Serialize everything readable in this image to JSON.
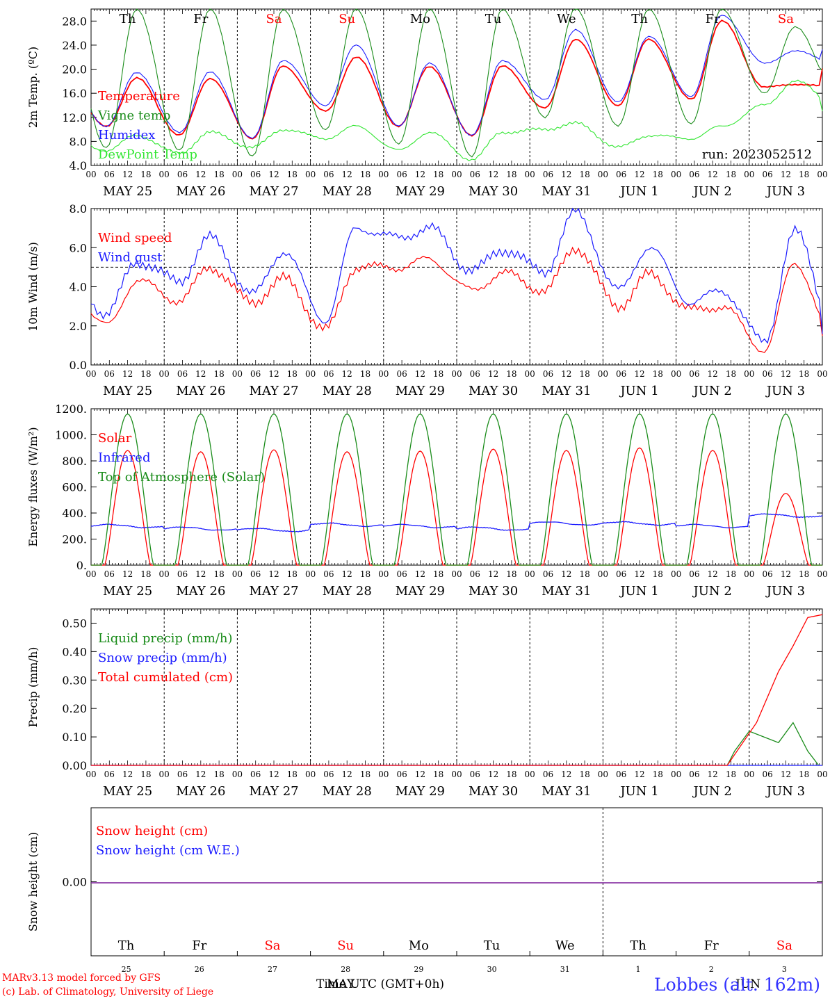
{
  "colors": {
    "red": "#ff0000",
    "blue": "#1a1aff",
    "green": "#1a8c1a",
    "lightgreen": "#33e633",
    "purple": "#7a1a99",
    "weekend": "#ff0000",
    "weekday": "#000000"
  },
  "footer": {
    "credit1": "MARv3.13 model forced by GFS",
    "credit2": "(c) Lab. of Climatology, University of Liege",
    "xlabel": "Time UTC (GMT+0h)",
    "month_overlay_1": "MAY",
    "month_overlay_2": "JUN",
    "station": "Lobbes (alt.  162m)"
  },
  "chart_data": [
    {
      "type": "line",
      "panel": "temperature",
      "ylabel": "2m Temp. (ºC)",
      "ylim": [
        4.0,
        30.0
      ],
      "yticks": [
        "4.0",
        "8.0",
        "12.0",
        "16.0",
        "20.0",
        "24.0",
        "28.0"
      ],
      "hours": [
        "00",
        "06",
        "12",
        "18"
      ],
      "dates": [
        "MAY 25",
        "MAY 26",
        "MAY 27",
        "MAY 28",
        "MAY 29",
        "MAY 30",
        "MAY 31",
        "JUN  1",
        "JUN  2",
        "JUN  3"
      ],
      "weekdays": [
        "Th",
        "Fr",
        "Sa",
        "Su",
        "Mo",
        "Tu",
        "We",
        "Th",
        "Fr",
        "Sa"
      ],
      "weekend": [
        false,
        false,
        true,
        true,
        false,
        false,
        false,
        false,
        false,
        true
      ],
      "annotation": "run: 2023052512",
      "legend": [
        "Temperature",
        "Vigne temp",
        "Humidex",
        "DewPoint Temp"
      ],
      "series": [
        {
          "name": "Temperature",
          "color": "red",
          "min": [
            10.5,
            9.0,
            8.5,
            13.0,
            10.5,
            9.0,
            13.5,
            14.0,
            15.0,
            17.0
          ],
          "max": [
            18.5,
            18.5,
            20.5,
            22.0,
            20.5,
            20.5,
            25.0,
            25.0,
            28.0,
            17.5
          ]
        },
        {
          "name": "Humidex",
          "color": "blue",
          "min": [
            10.5,
            9.5,
            8.5,
            14.0,
            10.5,
            9.0,
            15.0,
            14.5,
            15.5,
            21.0
          ],
          "max": [
            19.5,
            19.5,
            21.5,
            24.0,
            21.0,
            21.5,
            26.5,
            25.5,
            29.0,
            23.0
          ]
        },
        {
          "name": "Vigne temp",
          "color": "green",
          "min": [
            7.0,
            6.5,
            5.5,
            10.0,
            7.5,
            5.5,
            12.0,
            10.5,
            11.0,
            16.0
          ],
          "max": [
            30.0,
            30.0,
            30.0,
            30.0,
            30.0,
            30.0,
            30.0,
            30.0,
            30.0,
            27.0
          ]
        },
        {
          "name": "DewPoint Temp",
          "color": "lightgreen",
          "min": [
            6.5,
            6.0,
            7.0,
            8.5,
            6.5,
            5.0,
            10.0,
            7.0,
            8.5,
            14.0
          ],
          "max": [
            9.0,
            9.5,
            10.0,
            10.5,
            9.5,
            9.5,
            11.0,
            9.0,
            10.5,
            18.0
          ]
        }
      ]
    },
    {
      "type": "line",
      "panel": "wind",
      "ylabel": "10m Wind (m/s)",
      "ylim": [
        0.0,
        8.0
      ],
      "yticks": [
        "0.0",
        "2.0",
        "4.0",
        "6.0",
        "8.0"
      ],
      "reference_line": 5.0,
      "legend": [
        "Wind speed",
        "Wind gust"
      ],
      "series": [
        {
          "name": "Wind speed",
          "color": "red",
          "min": [
            2.0,
            3.3,
            3.2,
            1.8,
            5.0,
            3.8,
            3.8,
            3.0,
            2.8,
            0.8
          ],
          "max": [
            4.3,
            5.0,
            4.4,
            5.0,
            5.4,
            4.7,
            6.0,
            4.6,
            3.0,
            5.2
          ]
        },
        {
          "name": "Wind gust",
          "color": "blue",
          "min": [
            2.6,
            4.3,
            3.6,
            2.3,
            6.5,
            4.8,
            4.8,
            3.8,
            3.2,
            1.2
          ],
          "max": [
            5.3,
            6.5,
            5.8,
            7.0,
            7.0,
            5.9,
            7.8,
            6.0,
            3.8,
            6.8
          ]
        }
      ]
    },
    {
      "type": "line",
      "panel": "energy",
      "ylabel": "Energy fluxes (W/m²)",
      "ylim": [
        0,
        1200
      ],
      "yticks": [
        "0.",
        "200.",
        "400.",
        "600.",
        "800.",
        "1000.",
        "1200."
      ],
      "legend": [
        "Solar",
        "Infrared",
        "Top of Atmosphere (Solar)"
      ],
      "series": [
        {
          "name": "Solar",
          "color": "red",
          "daily_peak": [
            880,
            870,
            885,
            870,
            875,
            890,
            880,
            900,
            880,
            550
          ]
        },
        {
          "name": "Infrared",
          "color": "blue",
          "daily_mean": [
            300,
            280,
            270,
            310,
            300,
            280,
            320,
            320,
            300,
            380
          ]
        },
        {
          "name": "Top of Atmosphere (Solar)",
          "color": "green",
          "daily_peak": [
            1160,
            1160,
            1160,
            1160,
            1160,
            1160,
            1160,
            1160,
            1160,
            1160
          ]
        }
      ]
    },
    {
      "type": "line",
      "panel": "precip",
      "ylabel": "Precip (mm/h)",
      "ylim": [
        0.0,
        0.55
      ],
      "yticks": [
        "0.00",
        "0.10",
        "0.20",
        "0.30",
        "0.40",
        "0.50"
      ],
      "legend": [
        "Liquid precip (mm/h)",
        "Snow precip (mm/h)",
        "Total cumulated (cm)"
      ],
      "series": [
        {
          "name": "Liquid precip (mm/h)",
          "color": "green",
          "x": [
            8.7,
            8.8,
            9.0,
            9.2,
            9.4,
            9.6,
            9.8,
            9.95
          ],
          "y": [
            0.0,
            0.05,
            0.12,
            0.1,
            0.08,
            0.15,
            0.05,
            0.0
          ]
        },
        {
          "name": "Snow precip (mm/h)",
          "color": "blue",
          "x": [
            0,
            10
          ],
          "y": [
            0,
            0
          ]
        },
        {
          "name": "Total cumulated (cm)",
          "color": "red",
          "x": [
            0,
            8.7,
            9.1,
            9.4,
            9.6,
            9.8,
            10.0
          ],
          "y": [
            0.0,
            0.0,
            0.15,
            0.33,
            0.42,
            0.52,
            0.53
          ]
        }
      ]
    },
    {
      "type": "line",
      "panel": "snow",
      "ylabel": "Snow height (cm)",
      "yticks": [
        "0.00"
      ],
      "legend": [
        "Snow height (cm)",
        "Snow height (cm W.E.)"
      ],
      "day_numbers": [
        "25",
        "26",
        "27",
        "28",
        "29",
        "30",
        "31",
        "1",
        "2",
        "3"
      ],
      "series": [
        {
          "name": "Snow height (cm)",
          "color": "red",
          "value": 0.0
        },
        {
          "name": "Snow height (cm W.E.)",
          "color": "blue",
          "value": 0.0
        }
      ]
    }
  ]
}
